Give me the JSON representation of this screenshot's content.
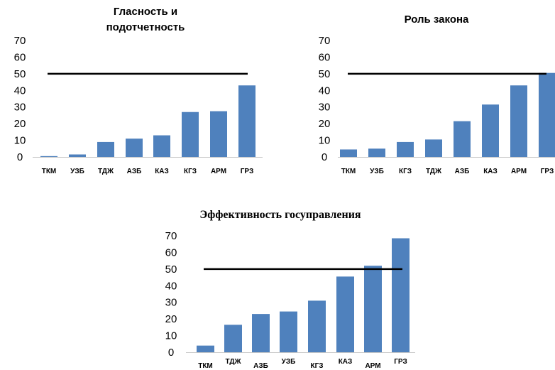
{
  "charts": [
    {
      "title": "Гласность и подотчетность",
      "chart_data": {
        "type": "bar",
        "categories": [
          "ТКМ",
          "УЗБ",
          "ТДЖ",
          "АЗБ",
          "КАЗ",
          "КГЗ",
          "АРМ",
          "ГРЗ"
        ],
        "values": [
          0.5,
          1.5,
          9,
          11,
          13,
          27,
          27.5,
          43
        ],
        "threshold": 50,
        "ylim": [
          0,
          70
        ],
        "yticks": [
          0,
          10,
          20,
          30,
          40,
          50,
          60,
          70
        ],
        "bar_color": "#4f81bd",
        "line_color": "#000000"
      }
    },
    {
      "title": "Роль закона",
      "chart_data": {
        "type": "bar",
        "categories": [
          "ТКМ",
          "УЗБ",
          "КГЗ",
          "ТДЖ",
          "АЗБ",
          "КАЗ",
          "АРМ",
          "ГРЗ"
        ],
        "values": [
          4.5,
          5,
          9,
          10.5,
          21.5,
          31.5,
          43,
          50.5
        ],
        "threshold": 50,
        "ylim": [
          0,
          70
        ],
        "yticks": [
          0,
          10,
          20,
          30,
          40,
          50,
          60,
          70
        ],
        "bar_color": "#4f81bd",
        "line_color": "#000000"
      }
    },
    {
      "title": "Эффективность госуправления",
      "chart_data": {
        "type": "bar",
        "categories": [
          "ТКМ",
          "ТДЖ",
          "АЗБ",
          "УЗБ",
          "КГЗ",
          "КАЗ",
          "АРМ",
          "ГРЗ"
        ],
        "values": [
          4,
          16.5,
          23,
          24.5,
          31,
          45.5,
          52,
          68.5
        ],
        "threshold": 50,
        "ylim": [
          0,
          70
        ],
        "yticks": [
          0,
          10,
          20,
          30,
          40,
          50,
          60,
          70
        ],
        "bar_color": "#4f81bd",
        "line_color": "#000000"
      }
    }
  ]
}
